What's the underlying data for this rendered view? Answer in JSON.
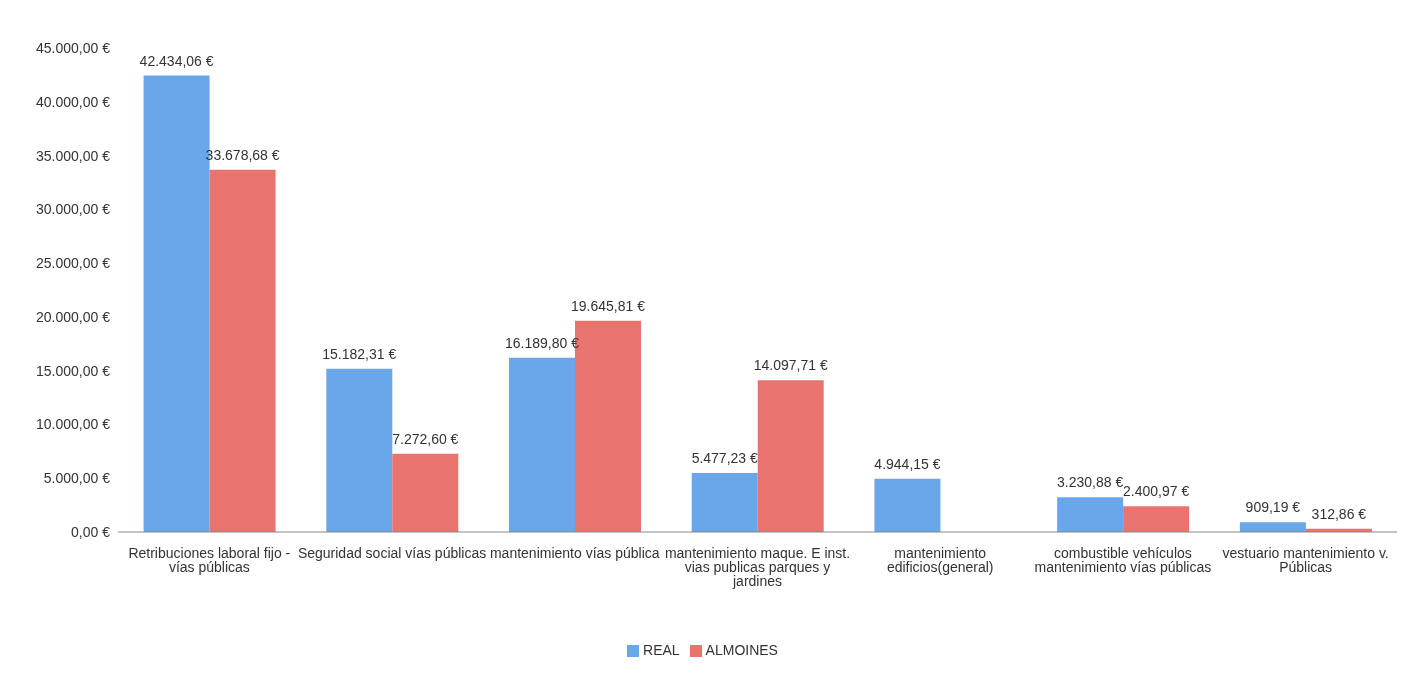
{
  "chart_data": {
    "type": "bar",
    "categories": [
      "Retribuciones laboral fijo - vías públicas",
      "Seguridad social vías públicas",
      "mantenimiento vías pública",
      "mantenimiento maque. E inst. vias publicas parques y jardines",
      "mantenimiento edificios(general)",
      "combustible vehículos mantenimiento vías públicas",
      "vestuario mantenimiento v. Públicas"
    ],
    "series": [
      {
        "name": "REAL",
        "color": "#6aa6ea",
        "values": [
          42434.06,
          15182.31,
          16189.8,
          5477.23,
          4944.15,
          3230.88,
          909.19
        ],
        "value_labels": [
          "42.434,06 €",
          "15.182,31 €",
          "16.189,80 €",
          "5.477,23 €",
          "4.944,15 €",
          "3.230,88 €",
          "909,19 €"
        ]
      },
      {
        "name": "ALMOINES",
        "color": "#e8736f",
        "values": [
          33678.68,
          7272.6,
          19645.81,
          14097.71,
          null,
          2400.97,
          312.86
        ],
        "value_labels": [
          "33.678,68 €",
          "7.272,60 €",
          "19.645,81 €",
          "14.097,71 €",
          null,
          "2.400,97 €",
          "312,86 €"
        ]
      }
    ],
    "ylim": [
      0,
      45000
    ],
    "yticks": [
      {
        "value": 0,
        "label": "0,00 €"
      },
      {
        "value": 5000,
        "label": "5.000,00 €"
      },
      {
        "value": 10000,
        "label": "10.000,00 €"
      },
      {
        "value": 15000,
        "label": "15.000,00 €"
      },
      {
        "value": 20000,
        "label": "20.000,00 €"
      },
      {
        "value": 25000,
        "label": "25.000,00 €"
      },
      {
        "value": 30000,
        "label": "30.000,00 €"
      },
      {
        "value": 35000,
        "label": "35.000,00 €"
      },
      {
        "value": 40000,
        "label": "40.000,00 €"
      },
      {
        "value": 45000,
        "label": "45.000,00 €"
      }
    ],
    "legend": "bottom"
  }
}
